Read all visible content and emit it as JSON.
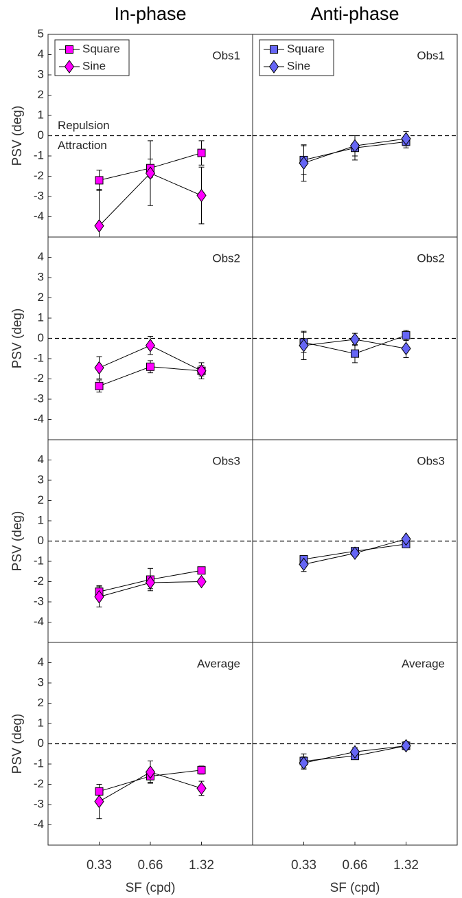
{
  "chart_data": [
    {
      "type": "line",
      "title": "In-phase",
      "panel_label": "Obs1",
      "ylabel": "PSV (deg)",
      "annotations": [
        "Repulsion",
        "Attraction"
      ],
      "legend": "upper left",
      "x": [
        0.33,
        0.66,
        1.32
      ],
      "xscale": "log",
      "xlim": [
        0.165,
        2.64
      ],
      "ylim": [
        -5,
        5
      ],
      "yticks": [
        -4,
        -3,
        -2,
        -1,
        0,
        1,
        2,
        3,
        4,
        5
      ],
      "hline": 0,
      "series": [
        {
          "name": "Square",
          "marker": "square",
          "color": "#ff00ff",
          "values": [
            -2.2,
            -1.6,
            -0.85
          ],
          "errors": [
            0.5,
            0.45,
            0.6
          ]
        },
        {
          "name": "Sine",
          "marker": "diamond",
          "color": "#ff00ff",
          "values": [
            -4.45,
            -1.85,
            -2.95
          ],
          "errors": [
            1.8,
            1.6,
            1.4
          ]
        }
      ]
    },
    {
      "type": "line",
      "title": "Anti-phase",
      "panel_label": "Obs1",
      "legend": "upper left",
      "x": [
        0.33,
        0.66,
        1.32
      ],
      "xscale": "log",
      "xlim": [
        0.165,
        2.64
      ],
      "ylim": [
        -5,
        5
      ],
      "hline": 0,
      "series": [
        {
          "name": "Square",
          "marker": "square",
          "color": "#6666f5",
          "values": [
            -1.2,
            -0.6,
            -0.3
          ],
          "errors": [
            0.7,
            0.6,
            0.3
          ]
        },
        {
          "name": "Sine",
          "marker": "diamond",
          "color": "#6666f5",
          "values": [
            -1.35,
            -0.5,
            -0.15
          ],
          "errors": [
            0.9,
            0.5,
            0.35
          ]
        }
      ]
    },
    {
      "type": "line",
      "panel_label": "Obs2",
      "ylabel": "PSV (deg)",
      "x": [
        0.33,
        0.66,
        1.32
      ],
      "xscale": "log",
      "xlim": [
        0.165,
        2.64
      ],
      "ylim": [
        -5,
        5
      ],
      "yticks": [
        -4,
        -3,
        -2,
        -1,
        0,
        1,
        2,
        3,
        4
      ],
      "hline": 0,
      "series": [
        {
          "marker": "square",
          "color": "#ff00ff",
          "values": [
            -2.35,
            -1.4,
            -1.6
          ],
          "errors": [
            0.3,
            0.3,
            0.25
          ]
        },
        {
          "marker": "diamond",
          "color": "#ff00ff",
          "values": [
            -1.45,
            -0.35,
            -1.6
          ],
          "errors": [
            0.55,
            0.45,
            0.4
          ]
        }
      ]
    },
    {
      "type": "line",
      "panel_label": "Obs2",
      "x": [
        0.33,
        0.66,
        1.32
      ],
      "xscale": "log",
      "xlim": [
        0.165,
        2.64
      ],
      "ylim": [
        -5,
        5
      ],
      "hline": 0,
      "series": [
        {
          "marker": "square",
          "color": "#6666f5",
          "values": [
            -0.2,
            -0.75,
            0.15
          ],
          "errors": [
            0.5,
            0.45,
            0.25
          ]
        },
        {
          "marker": "diamond",
          "color": "#6666f5",
          "values": [
            -0.35,
            -0.05,
            -0.5
          ],
          "errors": [
            0.7,
            0.3,
            0.45
          ]
        }
      ]
    },
    {
      "type": "line",
      "panel_label": "Obs3",
      "ylabel": "PSV (deg)",
      "x": [
        0.33,
        0.66,
        1.32
      ],
      "xscale": "log",
      "xlim": [
        0.165,
        2.64
      ],
      "ylim": [
        -5,
        5
      ],
      "yticks": [
        -4,
        -3,
        -2,
        -1,
        0,
        1,
        2,
        3,
        4
      ],
      "hline": 0,
      "series": [
        {
          "marker": "square",
          "color": "#ff00ff",
          "values": [
            -2.5,
            -1.9,
            -1.45
          ],
          "errors": [
            0.3,
            0.55,
            0.15
          ]
        },
        {
          "marker": "diamond",
          "color": "#ff00ff",
          "values": [
            -2.75,
            -2.05,
            -2.0
          ],
          "errors": [
            0.5,
            0.3,
            0.15
          ]
        }
      ]
    },
    {
      "type": "line",
      "panel_label": "Obs3",
      "x": [
        0.33,
        0.66,
        1.32
      ],
      "xscale": "log",
      "xlim": [
        0.165,
        2.64
      ],
      "ylim": [
        -5,
        5
      ],
      "hline": 0,
      "series": [
        {
          "marker": "square",
          "color": "#6666f5",
          "values": [
            -0.9,
            -0.5,
            -0.15
          ],
          "errors": [
            0.1,
            0.15,
            0.15
          ]
        },
        {
          "marker": "diamond",
          "color": "#6666f5",
          "values": [
            -1.15,
            -0.6,
            0.1
          ],
          "errors": [
            0.35,
            0.15,
            0.1
          ]
        }
      ]
    },
    {
      "type": "line",
      "panel_label": "Average",
      "ylabel": "PSV (deg)",
      "xlabel": "SF (cpd)",
      "x": [
        0.33,
        0.66,
        1.32
      ],
      "xscale": "log",
      "xlim": [
        0.165,
        2.64
      ],
      "xticks": [
        0.33,
        0.66,
        1.32
      ],
      "ylim": [
        -5,
        5
      ],
      "yticks": [
        -4,
        -3,
        -2,
        -1,
        0,
        1,
        2,
        3,
        4
      ],
      "hline": 0,
      "series": [
        {
          "marker": "square",
          "color": "#ff00ff",
          "values": [
            -2.35,
            -1.6,
            -1.3
          ],
          "errors": [
            0.35,
            0.3,
            0.2
          ]
        },
        {
          "marker": "diamond",
          "color": "#ff00ff",
          "values": [
            -2.85,
            -1.4,
            -2.2
          ],
          "errors": [
            0.85,
            0.55,
            0.35
          ]
        }
      ]
    },
    {
      "type": "line",
      "panel_label": "Average",
      "xlabel": "SF (cpd)",
      "x": [
        0.33,
        0.66,
        1.32
      ],
      "xscale": "log",
      "xlim": [
        0.165,
        2.64
      ],
      "xticks": [
        0.33,
        0.66,
        1.32
      ],
      "ylim": [
        -5,
        5
      ],
      "hline": 0,
      "series": [
        {
          "marker": "square",
          "color": "#6666f5",
          "values": [
            -0.85,
            -0.6,
            -0.1
          ],
          "errors": [
            0.35,
            0.15,
            0.15
          ]
        },
        {
          "marker": "diamond",
          "color": "#6666f5",
          "values": [
            -0.95,
            -0.4,
            -0.1
          ],
          "errors": [
            0.3,
            0.2,
            0.2
          ]
        }
      ]
    }
  ]
}
